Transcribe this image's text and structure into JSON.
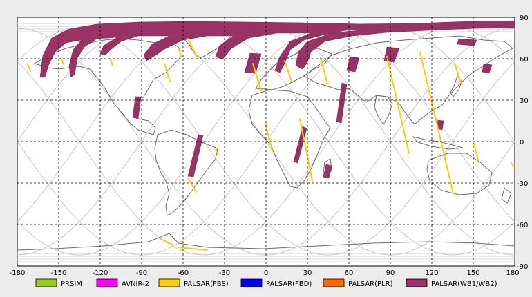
{
  "map": {
    "x_axis_ticks": [
      "-180",
      "-150",
      "-120",
      "-90",
      "-60",
      "-30",
      "0",
      "30",
      "60",
      "90",
      "120",
      "150",
      "180"
    ],
    "y_axis_ticks": [
      "90",
      "60",
      "30",
      "0",
      "-30",
      "-60",
      "-90"
    ],
    "colors": {
      "background": "#ececec",
      "plot_bg": "#ffffff",
      "land_outline": "#6a6a6a",
      "orbit_track": "#c4c4c4",
      "grid": "#000000"
    }
  },
  "legend": [
    {
      "id": "prism",
      "label": "PRSIM",
      "color": "#99cc22"
    },
    {
      "id": "avnir2",
      "label": "AVNIR-2",
      "color": "#ff00ff"
    },
    {
      "id": "palsar-fbs",
      "label": "PALSAR(FBS)",
      "color": "#ffcc00"
    },
    {
      "id": "palsar-fbd",
      "label": "PALSAR(FBD)",
      "color": "#0000ff"
    },
    {
      "id": "palsar-plr",
      "label": "PALSAR(PLR)",
      "color": "#ff6600"
    },
    {
      "id": "palsar-wb",
      "label": "PALSAR(WB1/WB2)",
      "color": "#993366"
    }
  ]
}
